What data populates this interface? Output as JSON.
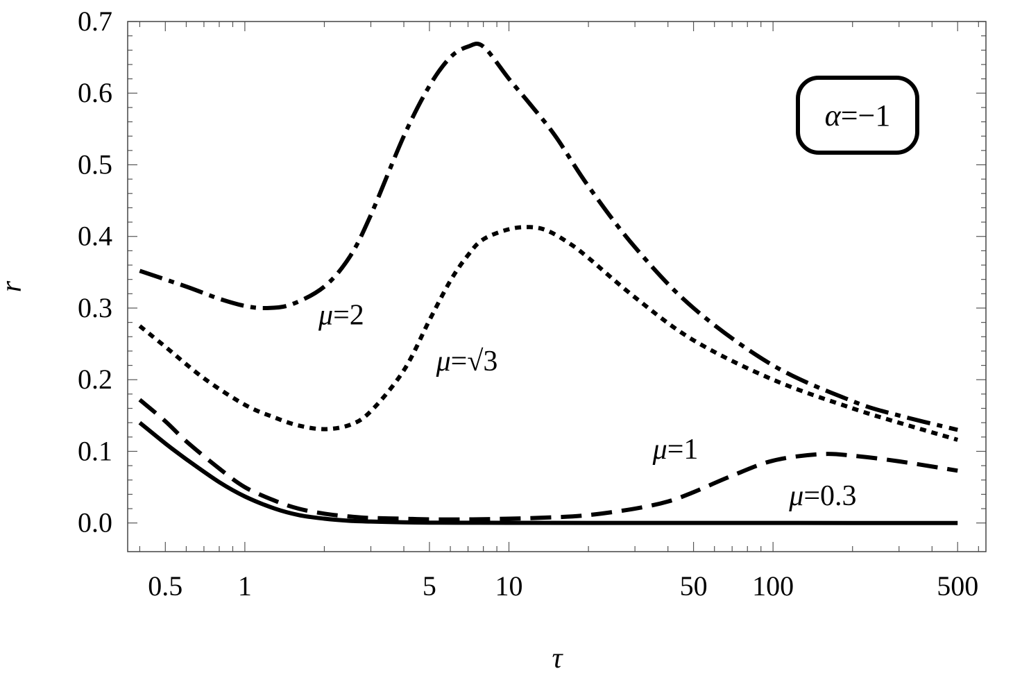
{
  "chart_data": {
    "type": "line",
    "xlabel": "τ",
    "ylabel": "r",
    "x_scale": "log",
    "xlim": [
      0.36,
      640
    ],
    "ylim": [
      -0.04,
      0.7
    ],
    "x_ticks": [
      {
        "value": 0.5,
        "label": "0.5"
      },
      {
        "value": 1,
        "label": "1"
      },
      {
        "value": 5,
        "label": "5"
      },
      {
        "value": 10,
        "label": "10"
      },
      {
        "value": 50,
        "label": "50"
      },
      {
        "value": 100,
        "label": "100"
      },
      {
        "value": 500,
        "label": "500"
      }
    ],
    "y_ticks": [
      {
        "value": 0.0,
        "label": "0.0"
      },
      {
        "value": 0.1,
        "label": "0.1"
      },
      {
        "value": 0.2,
        "label": "0.2"
      },
      {
        "value": 0.3,
        "label": "0.3"
      },
      {
        "value": 0.4,
        "label": "0.4"
      },
      {
        "value": 0.5,
        "label": "0.5"
      },
      {
        "value": 0.6,
        "label": "0.6"
      },
      {
        "value": 0.7,
        "label": "0.7"
      }
    ],
    "annotation": {
      "prefix": "α",
      "suffix": "=−1"
    },
    "series": [
      {
        "name": "μ=0.3",
        "label_prefix": "μ",
        "label_suffix": "=0.3",
        "style": "solid",
        "color": "#000000",
        "label_at": {
          "x": 115,
          "y": 0.025
        },
        "x": [
          0.4,
          0.5,
          0.6,
          0.8,
          1,
          1.3,
          1.6,
          2,
          2.5,
          3,
          4,
          5,
          7,
          10,
          20,
          50,
          100,
          200,
          500
        ],
        "y": [
          0.14,
          0.111,
          0.089,
          0.057,
          0.037,
          0.02,
          0.011,
          0.006,
          0.003,
          0.002,
          0.001,
          0.0005,
          0.0003,
          0.0002,
          0.0001,
          0.0001,
          0.0001,
          0.0,
          0.0
        ]
      },
      {
        "name": "μ=1",
        "label_prefix": "μ",
        "label_suffix": "=1",
        "style": "dashed",
        "color": "#000000",
        "label_at": {
          "x": 35,
          "y": 0.09
        },
        "x": [
          0.4,
          0.5,
          0.6,
          0.8,
          1,
          1.3,
          1.6,
          2,
          2.5,
          3,
          4,
          5,
          7,
          10,
          15,
          20,
          30,
          40,
          50,
          70,
          100,
          150,
          200,
          300,
          500
        ],
        "y": [
          0.172,
          0.142,
          0.114,
          0.076,
          0.05,
          0.031,
          0.02,
          0.013,
          0.009,
          0.007,
          0.006,
          0.005,
          0.005,
          0.006,
          0.008,
          0.011,
          0.02,
          0.03,
          0.043,
          0.066,
          0.087,
          0.096,
          0.094,
          0.086,
          0.073
        ]
      },
      {
        "name": "μ=√3",
        "label_prefix": "μ",
        "label_suffix": "=√3",
        "style": "dotted",
        "color": "#000000",
        "label_at": {
          "x": 5.3,
          "y": 0.213
        },
        "x": [
          0.4,
          0.5,
          0.7,
          1,
          1.3,
          1.6,
          2,
          2.5,
          3,
          4,
          5,
          6,
          7,
          8,
          10,
          12,
          14,
          17,
          20,
          30,
          50,
          100,
          200,
          300,
          500
        ],
        "y": [
          0.275,
          0.246,
          0.202,
          0.165,
          0.147,
          0.136,
          0.131,
          0.137,
          0.156,
          0.213,
          0.283,
          0.338,
          0.374,
          0.396,
          0.41,
          0.413,
          0.408,
          0.39,
          0.37,
          0.315,
          0.255,
          0.2,
          0.16,
          0.14,
          0.116
        ]
      },
      {
        "name": "μ=2",
        "label_prefix": "μ",
        "label_suffix": "=2",
        "style": "dashdot",
        "color": "#000000",
        "label_at": {
          "x": 1.9,
          "y": 0.277
        },
        "x": [
          0.4,
          0.6,
          0.8,
          1,
          1.2,
          1.5,
          2,
          2.5,
          3,
          4,
          5,
          6,
          7,
          8,
          10,
          12,
          15,
          20,
          30,
          50,
          100,
          200,
          300,
          500
        ],
        "y": [
          0.352,
          0.33,
          0.313,
          0.303,
          0.3,
          0.305,
          0.33,
          0.372,
          0.43,
          0.54,
          0.61,
          0.65,
          0.665,
          0.665,
          0.62,
          0.585,
          0.54,
          0.47,
          0.385,
          0.3,
          0.22,
          0.17,
          0.15,
          0.13
        ]
      }
    ]
  }
}
